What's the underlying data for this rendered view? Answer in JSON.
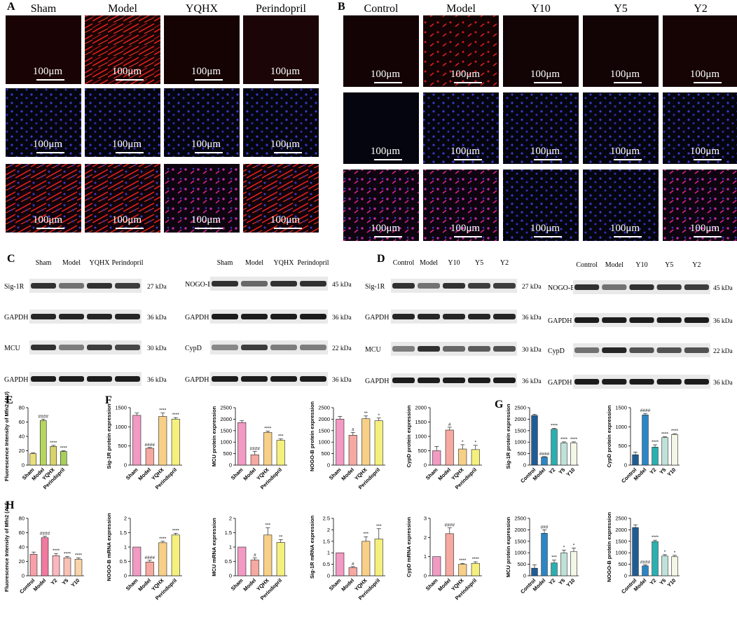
{
  "panel_labels": [
    "A",
    "B",
    "C",
    "D",
    "E",
    "F",
    "G",
    "H"
  ],
  "panel_a": {
    "headers": [
      "Sham",
      "Model",
      "YQHX",
      "Perindopril"
    ],
    "scale_bar": "100μm"
  },
  "panel_b": {
    "headers": [
      "Control",
      "Model",
      "Y10",
      "Y5",
      "Y2"
    ],
    "scale_bar": "100μm"
  },
  "blots": {
    "c_left": {
      "groups": [
        "Sham",
        "Model",
        "YQHX",
        "Perindopril"
      ],
      "rows": [
        {
          "name": "Sig-1R",
          "kda": "27 kDa"
        },
        {
          "name": "GAPDH",
          "kda": "36 kDa"
        },
        {
          "name": "MCU",
          "kda": "30 kDa"
        },
        {
          "name": "GAPDH",
          "kda": "36 kDa"
        }
      ]
    },
    "c_right": {
      "groups": [
        "Sham",
        "Model",
        "YQHX",
        "Perindopril"
      ],
      "rows": [
        {
          "name": "NOGO-B",
          "kda": "45 kDa"
        },
        {
          "name": "GAPDH",
          "kda": "36 kDa"
        },
        {
          "name": "CypD",
          "kda": "22 kDa"
        },
        {
          "name": "GAPDH",
          "kda": "36 kDa"
        }
      ]
    },
    "d_left": {
      "groups": [
        "Control",
        "Model",
        "Y10",
        "Y5",
        "Y2"
      ],
      "rows": [
        {
          "name": "Sig-1R",
          "kda": "27 kDa"
        },
        {
          "name": "GAPDH",
          "kda": "36 kDa"
        },
        {
          "name": "MCU",
          "kda": "30 kDa"
        },
        {
          "name": "GAPDH",
          "kda": "36 kDa"
        }
      ]
    },
    "d_right": {
      "groups": [
        "Control",
        "Model",
        "Y10",
        "Y5",
        "Y2"
      ],
      "rows": [
        {
          "name": "NOGO-B",
          "kda": "45 kDa"
        },
        {
          "name": "GAPDH",
          "kda": "36 kDa"
        },
        {
          "name": "CypD",
          "kda": "22 kDa"
        },
        {
          "name": "GAPDH",
          "kda": "36 kDa"
        }
      ]
    }
  },
  "chart_data": [
    {
      "id": "E",
      "type": "bar",
      "ylabel": "Fluorescence Intensity of Mfn2 (AU)",
      "categories": [
        "Sham",
        "Model",
        "YQHX",
        "Perindopril"
      ],
      "values": [
        16,
        62,
        26,
        19
      ],
      "errors": [
        1,
        2,
        1.5,
        1
      ],
      "sig": [
        "",
        "####",
        "****",
        "****"
      ],
      "ylim": [
        0,
        80
      ],
      "ticks": [
        0,
        20,
        40,
        60,
        80
      ],
      "colors": [
        "#e8e07a",
        "#b5d55f",
        "#d9d36a",
        "#a8cf5a"
      ]
    },
    {
      "id": "G1",
      "type": "bar",
      "ylabel": "Sig-1R protein expression",
      "categories": [
        "Sham",
        "Model",
        "YQHX",
        "Perindopril"
      ],
      "values": [
        1300,
        440,
        1270,
        1200
      ],
      "errors": [
        60,
        20,
        90,
        40
      ],
      "sig": [
        "",
        "####",
        "****",
        "****"
      ],
      "ylim": [
        0,
        1500
      ],
      "ticks": [
        0,
        500,
        1000,
        1500
      ],
      "colors": [
        "#f29ac4",
        "#f6a9a0",
        "#f8cf87",
        "#f5f07e"
      ]
    },
    {
      "id": "G2",
      "type": "bar",
      "ylabel": "MCU protein expression",
      "categories": [
        "Sham",
        "Model",
        "YQHX",
        "Perindopril"
      ],
      "values": [
        1850,
        450,
        1420,
        1080
      ],
      "errors": [
        80,
        150,
        60,
        60
      ],
      "sig": [
        "",
        "####",
        "****",
        "***"
      ],
      "ylim": [
        0,
        2500
      ],
      "ticks": [
        0,
        500,
        1000,
        1500,
        2000,
        2500
      ],
      "colors": [
        "#f29ac4",
        "#f6a9a0",
        "#f8cf87",
        "#f5f07e"
      ]
    },
    {
      "id": "G3",
      "type": "bar",
      "ylabel": "NOGO-B protein expression",
      "categories": [
        "Sham",
        "Model",
        "YQHX",
        "Perindopril"
      ],
      "values": [
        2000,
        1300,
        2020,
        1930
      ],
      "errors": [
        120,
        120,
        120,
        120
      ],
      "sig": [
        "",
        "#",
        "**",
        "*"
      ],
      "ylim": [
        0,
        2500
      ],
      "ticks": [
        0,
        500,
        1000,
        1500,
        2000,
        2500
      ],
      "colors": [
        "#f29ac4",
        "#f6a9a0",
        "#f8cf87",
        "#f5f07e"
      ]
    },
    {
      "id": "G4",
      "type": "bar",
      "ylabel": "CypD protein expression",
      "categories": [
        "Sham",
        "Model",
        "YQHX",
        "Perindopril"
      ],
      "values": [
        500,
        1220,
        560,
        540
      ],
      "errors": [
        150,
        100,
        150,
        150
      ],
      "sig": [
        "",
        "#",
        "*",
        "*"
      ],
      "ylim": [
        0,
        2000
      ],
      "ticks": [
        0,
        500,
        1000,
        1500,
        2000
      ],
      "colors": [
        "#f29ac4",
        "#f6a9a0",
        "#f8cf87",
        "#f5f07e"
      ]
    },
    {
      "id": "H1",
      "type": "bar",
      "ylabel": "Sig-1R protein expression",
      "categories": [
        "Control",
        "Model",
        "Y2",
        "Y5",
        "Y10"
      ],
      "values": [
        2160,
        350,
        1560,
        970,
        970
      ],
      "errors": [
        50,
        20,
        40,
        40,
        40
      ],
      "sig": [
        "",
        "####",
        "****",
        "****",
        "****"
      ],
      "ylim": [
        0,
        2500
      ],
      "ticks": [
        0,
        500,
        1000,
        1500,
        2000,
        2500
      ],
      "colors": [
        "#1f5c96",
        "#2a86c6",
        "#2ab0b0",
        "#bfe2d8",
        "#f4f7e6"
      ]
    },
    {
      "id": "H2",
      "type": "bar",
      "ylabel": "CypD protein expression",
      "categories": [
        "Control",
        "Model",
        "Y2",
        "Y5",
        "Y10"
      ],
      "values": [
        270,
        1310,
        470,
        720,
        800
      ],
      "errors": [
        70,
        40,
        60,
        20,
        20
      ],
      "sig": [
        "",
        "####",
        "****",
        "****",
        "****"
      ],
      "ylim": [
        0,
        1500
      ],
      "ticks": [
        0,
        500,
        1000,
        1500
      ],
      "colors": [
        "#1f5c96",
        "#2a86c6",
        "#2ab0b0",
        "#bfe2d8",
        "#f4f7e6"
      ]
    },
    {
      "id": "F",
      "type": "bar",
      "ylabel": "Fluorescence Intensity of Mfn2 (AU)",
      "categories": [
        "Control",
        "Model",
        "Y2",
        "Y5",
        "Y10"
      ],
      "values": [
        30,
        53,
        28,
        25,
        23
      ],
      "errors": [
        3,
        2,
        3,
        2,
        2
      ],
      "sig": [
        "",
        "####",
        "****",
        "****",
        "****"
      ],
      "ylim": [
        0,
        80
      ],
      "ticks": [
        0,
        20,
        40,
        60,
        80
      ],
      "colors": [
        "#f7a0a9",
        "#f07aa0",
        "#fbb7bf",
        "#f9c1b5",
        "#f9d3a9"
      ]
    },
    {
      "id": "F1",
      "type": "bar",
      "ylabel": "NOGO-B mRNA expression",
      "categories": [
        "Sham",
        "Model",
        "YQHX",
        "Perindopril"
      ],
      "values": [
        1.0,
        0.48,
        1.15,
        1.42
      ],
      "errors": [
        0,
        0.06,
        0.05,
        0.06
      ],
      "sig": [
        "",
        "####",
        "****",
        "****"
      ],
      "ylim": [
        0,
        2.0
      ],
      "ticks": [
        0,
        0.5,
        1.0,
        1.5,
        2.0
      ],
      "colors": [
        "#f29ac4",
        "#f6a9a0",
        "#f8cf87",
        "#f5f07e"
      ]
    },
    {
      "id": "F2",
      "type": "bar",
      "ylabel": "MCU mRNA expression",
      "categories": [
        "Sham",
        "Model",
        "YQHX",
        "Perindopril"
      ],
      "values": [
        1.0,
        0.55,
        1.42,
        1.16
      ],
      "errors": [
        0,
        0.07,
        0.25,
        0.1
      ],
      "sig": [
        "",
        "#",
        "***",
        "**"
      ],
      "ylim": [
        0,
        2.0
      ],
      "ticks": [
        0,
        0.5,
        1.0,
        1.5,
        2.0
      ],
      "colors": [
        "#f29ac4",
        "#f6a9a0",
        "#f8cf87",
        "#f5f07e"
      ]
    },
    {
      "id": "F3",
      "type": "bar",
      "ylabel": "Sig-1R mRNA expression",
      "categories": [
        "Sham",
        "Model",
        "YQHX",
        "Perindopril"
      ],
      "values": [
        1.0,
        0.36,
        1.5,
        1.6
      ],
      "errors": [
        0,
        0.04,
        0.2,
        0.45
      ],
      "sig": [
        "",
        "#",
        "***",
        "***"
      ],
      "ylim": [
        0,
        2.5
      ],
      "ticks": [
        0,
        0.5,
        1.0,
        1.5,
        2.0,
        2.5
      ],
      "colors": [
        "#f29ac4",
        "#f6a9a0",
        "#f8cf87",
        "#f5f07e"
      ]
    },
    {
      "id": "F4",
      "type": "bar",
      "ylabel": "CypD mRNA expression",
      "categories": [
        "Sham",
        "Model",
        "YQHX",
        "Perindopril"
      ],
      "values": [
        1.0,
        2.2,
        0.6,
        0.65
      ],
      "errors": [
        0,
        0.3,
        0.05,
        0.08
      ],
      "sig": [
        "",
        "####",
        "****",
        "****"
      ],
      "ylim": [
        0,
        3
      ],
      "ticks": [
        0,
        1,
        2,
        3
      ],
      "colors": [
        "#f29ac4",
        "#f6a9a0",
        "#f8cf87",
        "#f5f07e"
      ]
    },
    {
      "id": "H3",
      "type": "bar",
      "ylabel": "MCU protein expression",
      "categories": [
        "Control",
        "Model",
        "Y2",
        "Y5",
        "Y10"
      ],
      "values": [
        330,
        1850,
        560,
        1000,
        1060
      ],
      "errors": [
        150,
        150,
        120,
        120,
        150
      ],
      "sig": [
        "",
        "###",
        "***",
        "*",
        "*"
      ],
      "ylim": [
        0,
        2500
      ],
      "ticks": [
        0,
        500,
        1000,
        1500,
        2000,
        2500
      ],
      "colors": [
        "#1f5c96",
        "#2a86c6",
        "#2ab0b0",
        "#bfe2d8",
        "#f4f7e6"
      ]
    },
    {
      "id": "H4",
      "type": "bar",
      "ylabel": "NOGO-B protein expression",
      "categories": [
        "Control",
        "Model",
        "Y2",
        "Y5",
        "Y10"
      ],
      "values": [
        2100,
        430,
        1490,
        860,
        830
      ],
      "errors": [
        120,
        50,
        60,
        60,
        60
      ],
      "sig": [
        "",
        "####",
        "****",
        "*",
        "*"
      ],
      "ylim": [
        0,
        2500
      ],
      "ticks": [
        0,
        500,
        1000,
        1500,
        2000,
        2500
      ],
      "colors": [
        "#1f5c96",
        "#2a86c6",
        "#2ab0b0",
        "#bfe2d8",
        "#f4f7e6"
      ]
    }
  ]
}
